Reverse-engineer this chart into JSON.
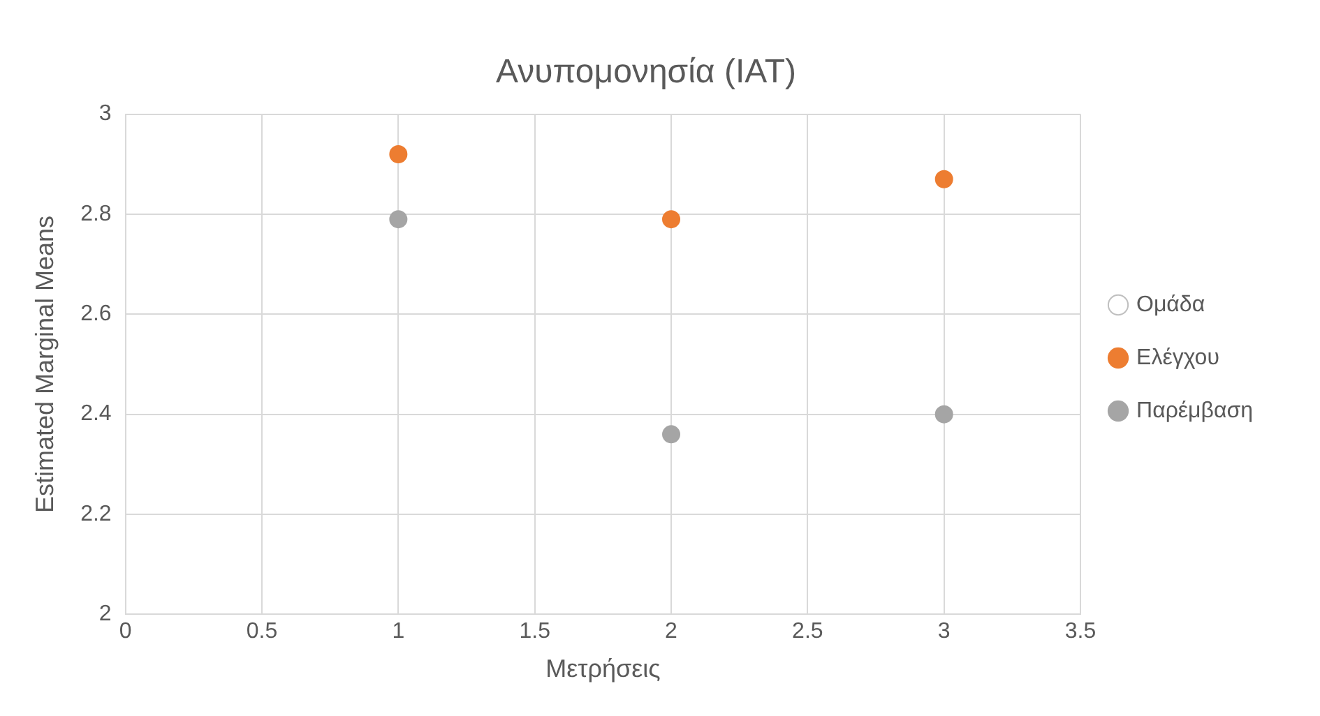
{
  "chart_data": {
    "type": "scatter",
    "title": "Ανυπομονησία (IAT)",
    "xlabel": "Μετρήσεις",
    "ylabel": "Estimated Marginal Means",
    "x": [
      1,
      2,
      3
    ],
    "series": [
      {
        "name": "Ομάδα",
        "color": "#bfbfbf",
        "values": [
          null,
          null,
          null
        ]
      },
      {
        "name": "Ελέγχου",
        "color": "#ed7d31",
        "values": [
          2.92,
          2.79,
          2.87
        ]
      },
      {
        "name": "Παρέμβαση",
        "color": "#a5a5a5",
        "values": [
          2.79,
          2.36,
          2.4
        ]
      }
    ],
    "xlim": [
      0,
      3.5
    ],
    "xticks": [
      0,
      0.5,
      1,
      1.5,
      2,
      2.5,
      3,
      3.5
    ],
    "ylim": [
      2,
      3
    ],
    "yticks": [
      2,
      2.2,
      2.4,
      2.6,
      2.8,
      3
    ],
    "grid": true,
    "legend": "right",
    "marker": "circle"
  }
}
